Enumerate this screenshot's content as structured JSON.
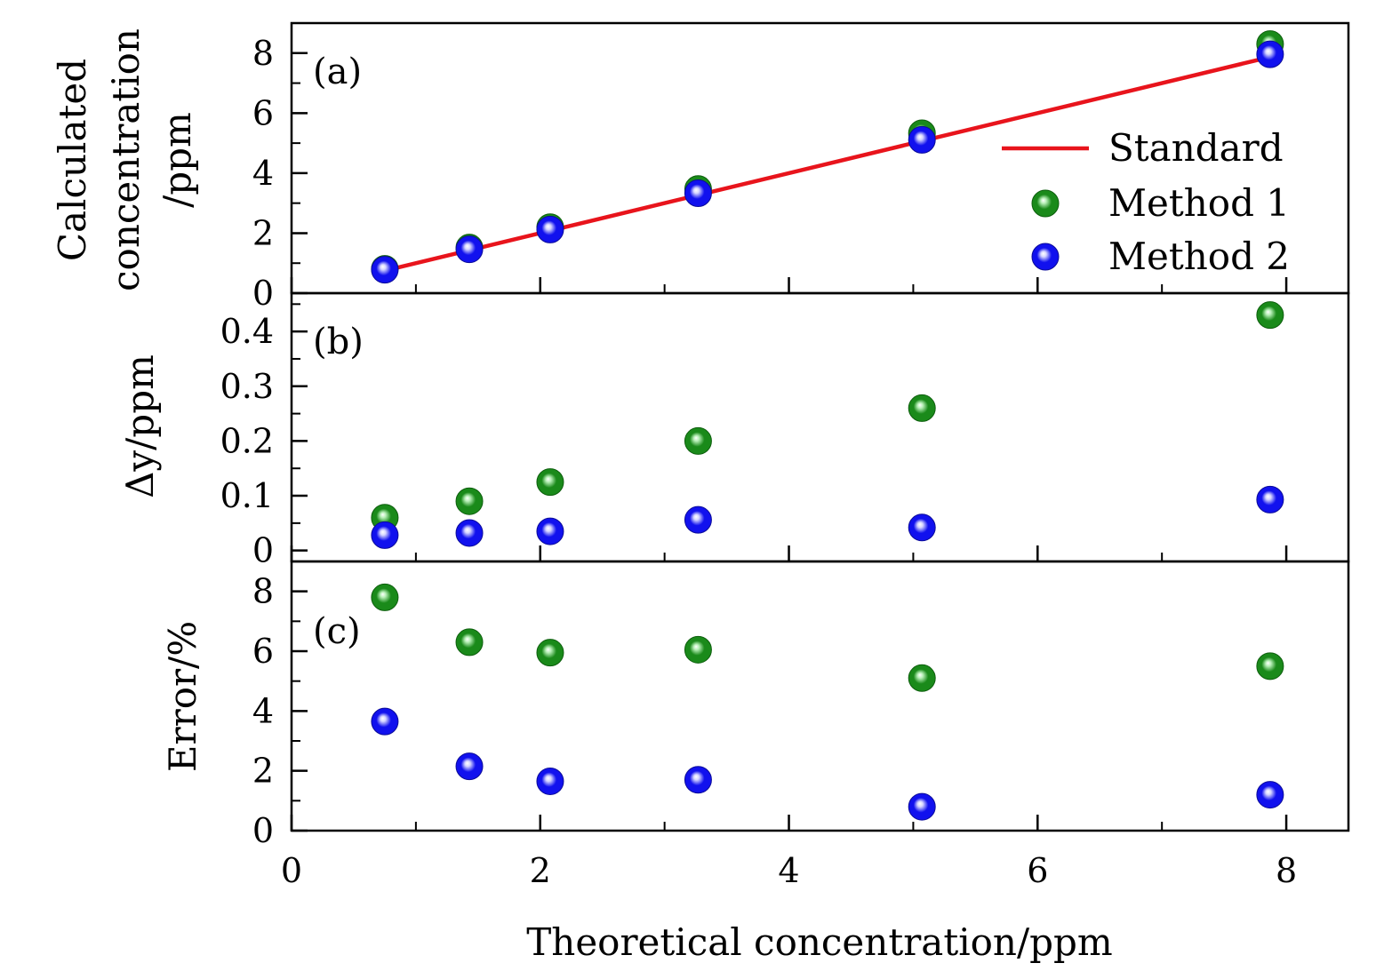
{
  "colors": {
    "standard": "#e8141c",
    "method1": "#1a8a1a",
    "method1_highlight": "#b9f0b9",
    "method2": "#1111ee",
    "method2_highlight": "#d6d6ff",
    "axes": "#000000"
  },
  "chart_data": {
    "type": "scatter",
    "xlabel": "Theoretical concentration/ppm",
    "xlim": [
      0,
      8.5
    ],
    "xticks": [
      0,
      2,
      4,
      6,
      8
    ],
    "xtick_labels": [
      "0",
      "2",
      "4",
      "6",
      "8"
    ],
    "x": [
      0.75,
      1.43,
      2.08,
      3.27,
      5.07,
      7.87
    ],
    "legend": {
      "placement": "right of panel (a)",
      "entries": [
        "Standard",
        "Method 1",
        "Method 2"
      ]
    },
    "panels": [
      {
        "id": "a",
        "label": "(a)",
        "ylabel_lines": [
          "Calculated",
          "concentration",
          "/ppm"
        ],
        "ylim": [
          0,
          9
        ],
        "yticks": [
          0,
          2,
          4,
          6,
          8
        ],
        "ytick_labels": [
          "0",
          "2",
          "4",
          "6",
          "8"
        ],
        "series": [
          {
            "name": "Standard",
            "kind": "line",
            "values": [
              0.75,
              1.43,
              2.08,
              3.27,
              5.07,
              7.87
            ]
          },
          {
            "name": "Method 1",
            "kind": "scatter",
            "values": [
              0.81,
              1.52,
              2.2,
              3.47,
              5.33,
              8.3
            ]
          },
          {
            "name": "Method 2",
            "kind": "scatter",
            "values": [
              0.78,
              1.46,
              2.12,
              3.33,
              5.11,
              7.96
            ]
          }
        ]
      },
      {
        "id": "b",
        "label": "(b)",
        "ylabel": "Δy/ppm",
        "ylim": [
          -0.02,
          0.47
        ],
        "yticks": [
          0,
          0.1,
          0.2,
          0.3,
          0.4
        ],
        "ytick_labels": [
          "0",
          "0.1",
          "0.2",
          "0.3",
          "0.4"
        ],
        "series": [
          {
            "name": "Method 1",
            "kind": "scatter",
            "values": [
              0.06,
              0.09,
              0.125,
              0.2,
              0.26,
              0.43
            ]
          },
          {
            "name": "Method 2",
            "kind": "scatter",
            "values": [
              0.028,
              0.032,
              0.035,
              0.056,
              0.042,
              0.093
            ]
          }
        ]
      },
      {
        "id": "c",
        "label": "(c)",
        "ylabel": "Error/%",
        "ylim": [
          0,
          9
        ],
        "yticks": [
          0,
          2,
          4,
          6,
          8
        ],
        "ytick_labels": [
          "0",
          "2",
          "4",
          "6",
          "8"
        ],
        "series": [
          {
            "name": "Method 1",
            "kind": "scatter",
            "values": [
              7.8,
              6.3,
              5.95,
              6.05,
              5.1,
              5.5
            ]
          },
          {
            "name": "Method 2",
            "kind": "scatter",
            "values": [
              3.65,
              2.15,
              1.65,
              1.7,
              0.8,
              1.2
            ]
          }
        ]
      }
    ]
  }
}
